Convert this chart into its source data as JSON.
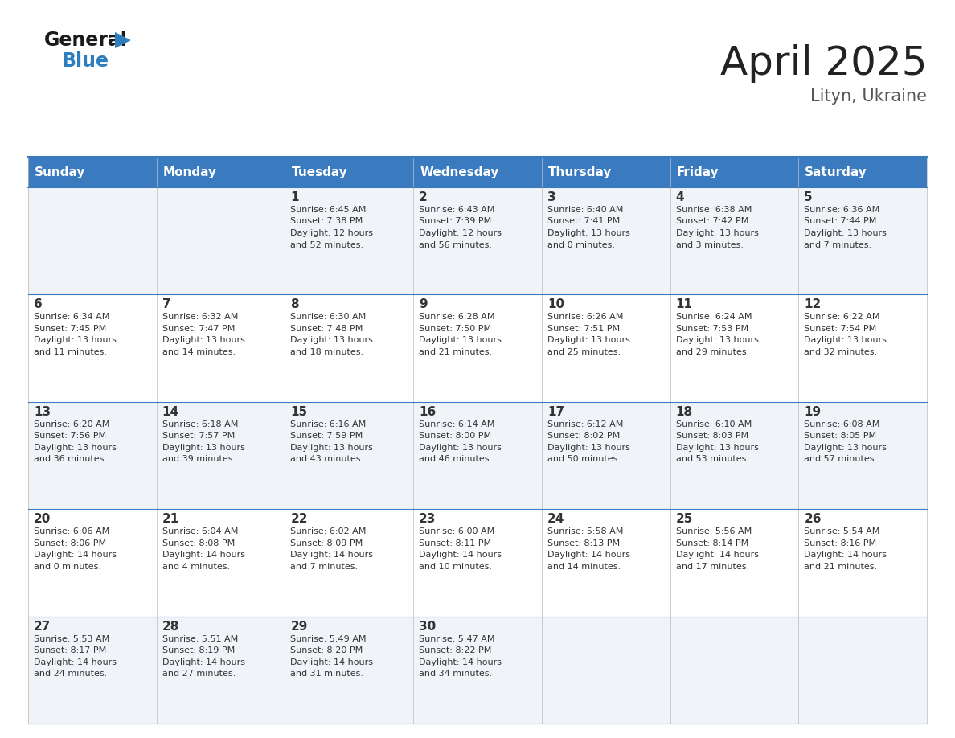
{
  "title": "April 2025",
  "subtitle": "Lityn, Ukraine",
  "header_bg": "#3a7abf",
  "header_text": "#ffffff",
  "cell_bg_odd": "#f0f4f8",
  "cell_bg_even": "#ffffff",
  "text_color": "#333333",
  "border_color": "#3a7abf",
  "days_of_week": [
    "Sunday",
    "Monday",
    "Tuesday",
    "Wednesday",
    "Thursday",
    "Friday",
    "Saturday"
  ],
  "weeks": [
    [
      {
        "day": null,
        "sunrise": null,
        "sunset": null,
        "daylight": null
      },
      {
        "day": null,
        "sunrise": null,
        "sunset": null,
        "daylight": null
      },
      {
        "day": 1,
        "sunrise": "6:45 AM",
        "sunset": "7:38 PM",
        "daylight": "12 hours and 52 minutes."
      },
      {
        "day": 2,
        "sunrise": "6:43 AM",
        "sunset": "7:39 PM",
        "daylight": "12 hours and 56 minutes."
      },
      {
        "day": 3,
        "sunrise": "6:40 AM",
        "sunset": "7:41 PM",
        "daylight": "13 hours and 0 minutes."
      },
      {
        "day": 4,
        "sunrise": "6:38 AM",
        "sunset": "7:42 PM",
        "daylight": "13 hours and 3 minutes."
      },
      {
        "day": 5,
        "sunrise": "6:36 AM",
        "sunset": "7:44 PM",
        "daylight": "13 hours and 7 minutes."
      }
    ],
    [
      {
        "day": 6,
        "sunrise": "6:34 AM",
        "sunset": "7:45 PM",
        "daylight": "13 hours and 11 minutes."
      },
      {
        "day": 7,
        "sunrise": "6:32 AM",
        "sunset": "7:47 PM",
        "daylight": "13 hours and 14 minutes."
      },
      {
        "day": 8,
        "sunrise": "6:30 AM",
        "sunset": "7:48 PM",
        "daylight": "13 hours and 18 minutes."
      },
      {
        "day": 9,
        "sunrise": "6:28 AM",
        "sunset": "7:50 PM",
        "daylight": "13 hours and 21 minutes."
      },
      {
        "day": 10,
        "sunrise": "6:26 AM",
        "sunset": "7:51 PM",
        "daylight": "13 hours and 25 minutes."
      },
      {
        "day": 11,
        "sunrise": "6:24 AM",
        "sunset": "7:53 PM",
        "daylight": "13 hours and 29 minutes."
      },
      {
        "day": 12,
        "sunrise": "6:22 AM",
        "sunset": "7:54 PM",
        "daylight": "13 hours and 32 minutes."
      }
    ],
    [
      {
        "day": 13,
        "sunrise": "6:20 AM",
        "sunset": "7:56 PM",
        "daylight": "13 hours and 36 minutes."
      },
      {
        "day": 14,
        "sunrise": "6:18 AM",
        "sunset": "7:57 PM",
        "daylight": "13 hours and 39 minutes."
      },
      {
        "day": 15,
        "sunrise": "6:16 AM",
        "sunset": "7:59 PM",
        "daylight": "13 hours and 43 minutes."
      },
      {
        "day": 16,
        "sunrise": "6:14 AM",
        "sunset": "8:00 PM",
        "daylight": "13 hours and 46 minutes."
      },
      {
        "day": 17,
        "sunrise": "6:12 AM",
        "sunset": "8:02 PM",
        "daylight": "13 hours and 50 minutes."
      },
      {
        "day": 18,
        "sunrise": "6:10 AM",
        "sunset": "8:03 PM",
        "daylight": "13 hours and 53 minutes."
      },
      {
        "day": 19,
        "sunrise": "6:08 AM",
        "sunset": "8:05 PM",
        "daylight": "13 hours and 57 minutes."
      }
    ],
    [
      {
        "day": 20,
        "sunrise": "6:06 AM",
        "sunset": "8:06 PM",
        "daylight": "14 hours and 0 minutes."
      },
      {
        "day": 21,
        "sunrise": "6:04 AM",
        "sunset": "8:08 PM",
        "daylight": "14 hours and 4 minutes."
      },
      {
        "day": 22,
        "sunrise": "6:02 AM",
        "sunset": "8:09 PM",
        "daylight": "14 hours and 7 minutes."
      },
      {
        "day": 23,
        "sunrise": "6:00 AM",
        "sunset": "8:11 PM",
        "daylight": "14 hours and 10 minutes."
      },
      {
        "day": 24,
        "sunrise": "5:58 AM",
        "sunset": "8:13 PM",
        "daylight": "14 hours and 14 minutes."
      },
      {
        "day": 25,
        "sunrise": "5:56 AM",
        "sunset": "8:14 PM",
        "daylight": "14 hours and 17 minutes."
      },
      {
        "day": 26,
        "sunrise": "5:54 AM",
        "sunset": "8:16 PM",
        "daylight": "14 hours and 21 minutes."
      }
    ],
    [
      {
        "day": 27,
        "sunrise": "5:53 AM",
        "sunset": "8:17 PM",
        "daylight": "14 hours and 24 minutes."
      },
      {
        "day": 28,
        "sunrise": "5:51 AM",
        "sunset": "8:19 PM",
        "daylight": "14 hours and 27 minutes."
      },
      {
        "day": 29,
        "sunrise": "5:49 AM",
        "sunset": "8:20 PM",
        "daylight": "14 hours and 31 minutes."
      },
      {
        "day": 30,
        "sunrise": "5:47 AM",
        "sunset": "8:22 PM",
        "daylight": "14 hours and 34 minutes."
      },
      {
        "day": null,
        "sunrise": null,
        "sunset": null,
        "daylight": null
      },
      {
        "day": null,
        "sunrise": null,
        "sunset": null,
        "daylight": null
      },
      {
        "day": null,
        "sunrise": null,
        "sunset": null,
        "daylight": null
      }
    ]
  ],
  "logo_general_color": "#1a1a1a",
  "logo_blue_color": "#2e7ebf",
  "logo_triangle_color": "#2e7ebf",
  "title_color": "#222222",
  "subtitle_color": "#555555",
  "title_fontsize": 36,
  "subtitle_fontsize": 15,
  "header_fontsize": 11,
  "day_num_fontsize": 11,
  "cell_text_fontsize": 8
}
